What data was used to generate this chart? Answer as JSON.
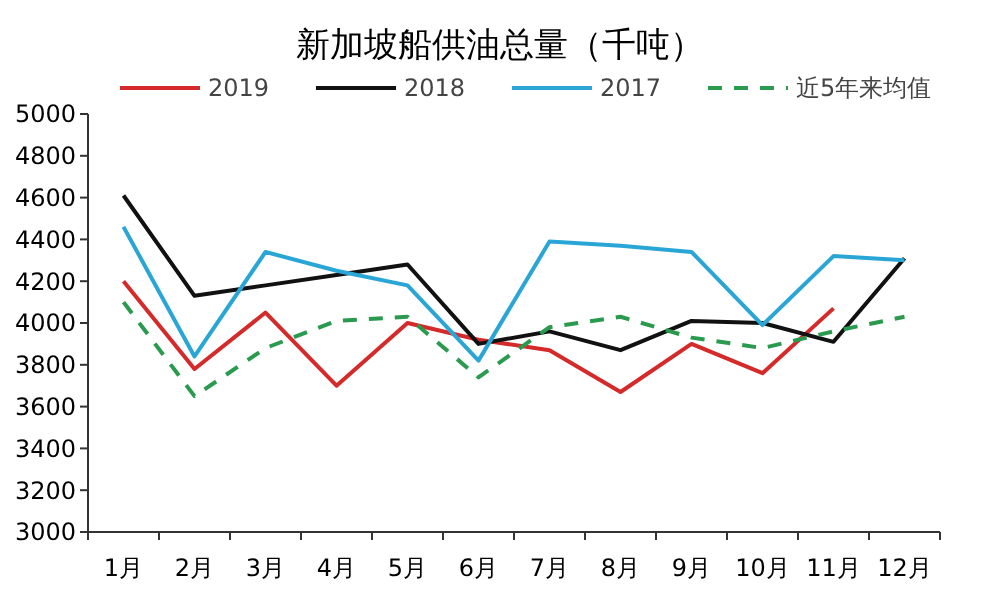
{
  "chart_data": {
    "type": "line",
    "title": "新加坡船供油总量（千吨）",
    "categories": [
      "1月",
      "2月",
      "3月",
      "4月",
      "5月",
      "6月",
      "7月",
      "8月",
      "9月",
      "10月",
      "11月",
      "12月"
    ],
    "series": [
      {
        "name": "2019",
        "color": "#d42a2a",
        "values": [
          4200,
          3780,
          4050,
          3700,
          4000,
          3920,
          3870,
          3670,
          3900,
          3760,
          4070,
          null
        ]
      },
      {
        "name": "2018",
        "color": "#111111",
        "values": [
          4610,
          4130,
          4180,
          4230,
          4280,
          3900,
          3960,
          3870,
          4010,
          4000,
          3910,
          4310
        ]
      },
      {
        "name": "2017",
        "color": "#2aa6d6",
        "values": [
          4460,
          3840,
          4340,
          4250,
          4180,
          3820,
          4390,
          4370,
          4340,
          3990,
          4320,
          4300
        ]
      },
      {
        "name": "近5年来均值",
        "color": "#2a9a4e",
        "line_style": "dashed",
        "values": [
          4100,
          3650,
          3880,
          4010,
          4030,
          3740,
          3980,
          4030,
          3930,
          3880,
          3960,
          4030
        ]
      }
    ],
    "ylim": [
      3000,
      5000
    ],
    "yticks": [
      3000,
      3200,
      3400,
      3600,
      3800,
      4000,
      4200,
      4400,
      4600,
      4800,
      5000
    ],
    "grid": false,
    "legend": "top",
    "marker": "none",
    "line_style": "solid"
  }
}
